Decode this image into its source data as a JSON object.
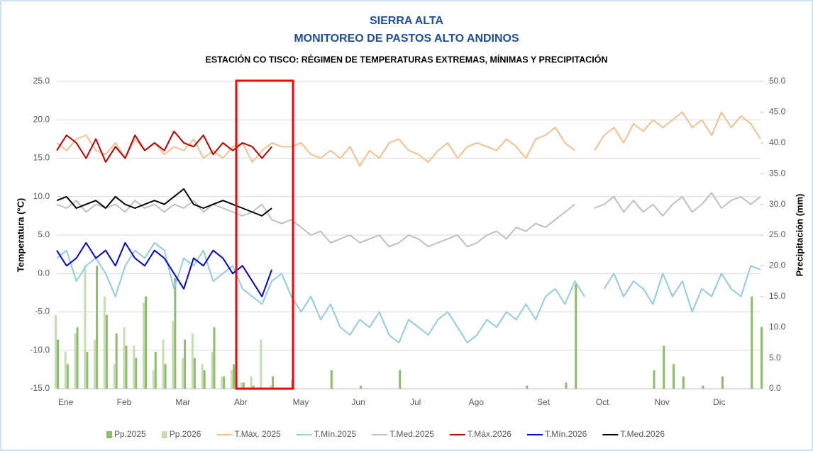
{
  "chart_data": {
    "type": "line",
    "title": "SIERRA ALTA",
    "subtitle": "MONITOREO DE PASTOS ALTO ANDINOS",
    "subtitle2": "ESTACIÓN CO TISCO: RÉGIMEN DE TEMPERATURAS EXTREMAS, MÍNIMAS Y PRECIPITACIÓN",
    "y_label": "Temperatura (°C)",
    "y2_label": "Precipitación (mm)",
    "grid": true,
    "legend": "bottom",
    "categories": [
      "Ene",
      null,
      null,
      null,
      null,
      null,
      "Feb",
      null,
      null,
      null,
      null,
      null,
      "Mar",
      null,
      null,
      null,
      null,
      null,
      "Abr",
      null,
      null,
      null,
      null,
      null,
      "May",
      null,
      null,
      null,
      null,
      null,
      "Jun",
      null,
      null,
      null,
      null,
      null,
      "Jul",
      null,
      null,
      null,
      null,
      null,
      "Ago",
      null,
      null,
      null,
      null,
      null,
      null,
      "Set",
      null,
      null,
      null,
      null,
      null,
      "Oct",
      null,
      null,
      null,
      null,
      null,
      "Nov",
      null,
      null,
      null,
      null,
      null,
      "Dic",
      null,
      null,
      null,
      null,
      null
    ],
    "ylim": [
      -15,
      25
    ],
    "yticks": [
      {
        "value": -15,
        "label": "-15.0"
      },
      {
        "value": -10,
        "label": "-10.0"
      },
      {
        "value": -5,
        "label": "-5.0"
      },
      {
        "value": 0,
        "label": "0.0"
      },
      {
        "value": 5,
        "label": "5.0"
      },
      {
        "value": 10,
        "label": "10.0"
      },
      {
        "value": 15,
        "label": "15.0"
      },
      {
        "value": 20,
        "label": "20.0"
      },
      {
        "value": 25,
        "label": "25.0"
      }
    ],
    "y2lim": [
      0,
      50
    ],
    "y2ticks": [
      {
        "value": 0,
        "label": "0.0"
      },
      {
        "value": 5,
        "label": "5.0"
      },
      {
        "value": 10,
        "label": "10.0"
      },
      {
        "value": 15,
        "label": "15.0"
      },
      {
        "value": 20,
        "label": "20.0"
      },
      {
        "value": 25,
        "label": "25.0"
      },
      {
        "value": 30,
        "label": "30.0"
      },
      {
        "value": 35,
        "label": "35.0"
      },
      {
        "value": 40,
        "label": "40.0"
      },
      {
        "value": 45,
        "label": "45.0"
      },
      {
        "value": 50,
        "label": "50.0"
      }
    ],
    "series": [
      {
        "name": "Pp.2025",
        "type": "bar",
        "axis": "y2",
        "color": "#8dbd6c",
        "values": [
          8,
          4,
          10,
          6,
          20,
          12,
          9,
          7,
          5,
          15,
          6,
          4,
          18,
          8,
          5,
          3,
          10,
          2,
          4,
          1,
          0.5,
          0,
          2,
          0,
          1.5,
          0,
          0,
          0,
          3,
          0,
          0,
          0.5,
          0,
          0,
          0,
          3,
          0,
          0,
          0,
          0,
          0,
          0,
          0,
          0,
          0,
          0,
          0,
          0,
          0.5,
          0,
          0,
          0,
          1,
          17,
          0,
          0,
          0,
          0,
          0,
          0,
          0,
          3,
          7,
          4,
          2,
          0,
          0.5,
          0,
          2,
          0,
          0,
          15,
          10
        ]
      },
      {
        "name": "Pp.2026",
        "type": "bar",
        "axis": "y2",
        "color": "#c6ddb2",
        "values": [
          12,
          6,
          9,
          20,
          8,
          15,
          4,
          10,
          7,
          14,
          3,
          8,
          11,
          5,
          9,
          4,
          6,
          2,
          3,
          1,
          2,
          8,
          0.5,
          null,
          null,
          null,
          null,
          null,
          null,
          null,
          null,
          null,
          null,
          null,
          null,
          null,
          null,
          null,
          null,
          null,
          null,
          null,
          null,
          null,
          null,
          null,
          null,
          null,
          null,
          null,
          null,
          null,
          null,
          null,
          null,
          null,
          null,
          null,
          null,
          null,
          null,
          null,
          null,
          null,
          null,
          null,
          null,
          null,
          null,
          null,
          null,
          null,
          null
        ]
      },
      {
        "name": "T.Máx. 2025",
        "type": "line",
        "color": "#f5bf8e",
        "values": [
          17,
          16,
          17.5,
          18,
          16,
          15.5,
          17,
          15,
          17.5,
          16,
          17,
          15.5,
          16.5,
          16,
          17.5,
          15,
          16,
          15,
          16.5,
          17,
          14.5,
          16,
          17,
          16.5,
          16.5,
          17,
          15.5,
          15,
          16,
          15,
          16.5,
          14,
          16,
          15,
          17,
          17.5,
          16,
          15.5,
          14.5,
          16,
          17,
          15,
          16.5,
          17,
          16.5,
          16,
          17.5,
          16.5,
          15,
          17.5,
          18,
          19,
          17,
          16,
          null,
          16,
          18,
          19,
          17,
          19.5,
          18.5,
          20,
          19,
          20,
          21,
          19,
          20,
          18,
          21,
          19,
          20.5,
          19.5,
          17.5
        ]
      },
      {
        "name": "T.Mín.2025",
        "type": "line",
        "color": "#92cddc",
        "values": [
          2,
          3,
          -1,
          1,
          2,
          0,
          -3,
          1,
          3,
          2,
          4,
          3,
          -2,
          2,
          1,
          3,
          -1,
          0,
          1,
          -2,
          -3,
          -4,
          -1,
          0,
          -3,
          -5,
          -3,
          -6,
          -4,
          -7,
          -8,
          -6,
          -7,
          -5,
          -8,
          -9,
          -6,
          -7,
          -8,
          -6,
          -5,
          -7,
          -9,
          -8,
          -6,
          -7,
          -5,
          -6,
          -4,
          -6,
          -3,
          -2,
          -4,
          -1,
          -3,
          null,
          -2,
          0,
          -3,
          -1,
          -2,
          -4,
          0,
          -3,
          -1,
          -5,
          -2,
          -3,
          0,
          -2,
          -3,
          1,
          0.5
        ]
      },
      {
        "name": "T.Med.2025",
        "type": "line",
        "color": "#bfbfbf",
        "values": [
          9,
          8.5,
          9.5,
          8,
          9,
          8.5,
          9,
          8,
          9.5,
          8.5,
          9,
          8,
          9,
          8.5,
          9.5,
          8,
          9,
          8.5,
          8,
          7.5,
          8,
          9,
          7,
          6.5,
          7,
          6,
          5,
          5.5,
          4,
          4.5,
          5,
          4,
          4.5,
          5,
          3.5,
          4,
          5,
          4.5,
          3.5,
          4,
          4.5,
          5,
          3.5,
          4,
          5,
          5.5,
          4.5,
          6,
          5.5,
          6.5,
          6,
          7,
          8,
          9,
          null,
          8.5,
          9,
          10,
          8,
          9.5,
          8,
          9,
          7.5,
          9,
          10,
          8,
          9,
          10.5,
          8.5,
          9.5,
          10,
          9,
          10
        ]
      },
      {
        "name": "T.Máx.2026",
        "type": "line",
        "color": "#c00000",
        "values": [
          16,
          18,
          17,
          15,
          17.5,
          14.5,
          16.5,
          15,
          18,
          16,
          17,
          16,
          18.5,
          17,
          16.5,
          18,
          15.5,
          17,
          16,
          17,
          16.5,
          15,
          16.5,
          null,
          null,
          null,
          null,
          null,
          null,
          null,
          null,
          null,
          null,
          null,
          null,
          null,
          null,
          null,
          null,
          null,
          null,
          null,
          null,
          null,
          null,
          null,
          null,
          null,
          null,
          null,
          null,
          null,
          null,
          null,
          null,
          null,
          null,
          null,
          null,
          null,
          null,
          null,
          null,
          null,
          null,
          null,
          null,
          null,
          null,
          null,
          null,
          null,
          null
        ]
      },
      {
        "name": "T.Mín.2026",
        "type": "line",
        "color": "#0000e0",
        "values": [
          3,
          1,
          2,
          4,
          2,
          3,
          1,
          4,
          2,
          1,
          3,
          2,
          0,
          -2,
          2,
          1,
          3,
          2,
          0,
          1,
          -1,
          -3,
          0.5,
          null,
          null,
          null,
          null,
          null,
          null,
          null,
          null,
          null,
          null,
          null,
          null,
          null,
          null,
          null,
          null,
          null,
          null,
          null,
          null,
          null,
          null,
          null,
          null,
          null,
          null,
          null,
          null,
          null,
          null,
          null,
          null,
          null,
          null,
          null,
          null,
          null,
          null,
          null,
          null,
          null,
          null,
          null,
          null,
          null,
          null,
          null,
          null,
          null,
          null
        ]
      },
      {
        "name": "T.Med.2026",
        "type": "line",
        "color": "#000000",
        "values": [
          9.5,
          10,
          8.5,
          9,
          9.5,
          8.5,
          10,
          9,
          8.5,
          9,
          9.5,
          9,
          10,
          11,
          9,
          8.5,
          9,
          9.5,
          9,
          8.5,
          8,
          7.5,
          8.5,
          null,
          null,
          null,
          null,
          null,
          null,
          null,
          null,
          null,
          null,
          null,
          null,
          null,
          null,
          null,
          null,
          null,
          null,
          null,
          null,
          null,
          null,
          null,
          null,
          null,
          null,
          null,
          null,
          null,
          null,
          null,
          null,
          null,
          null,
          null,
          null,
          null,
          null,
          null,
          null,
          null,
          null,
          null,
          null,
          null,
          null,
          null,
          null,
          null,
          null
        ]
      }
    ]
  }
}
